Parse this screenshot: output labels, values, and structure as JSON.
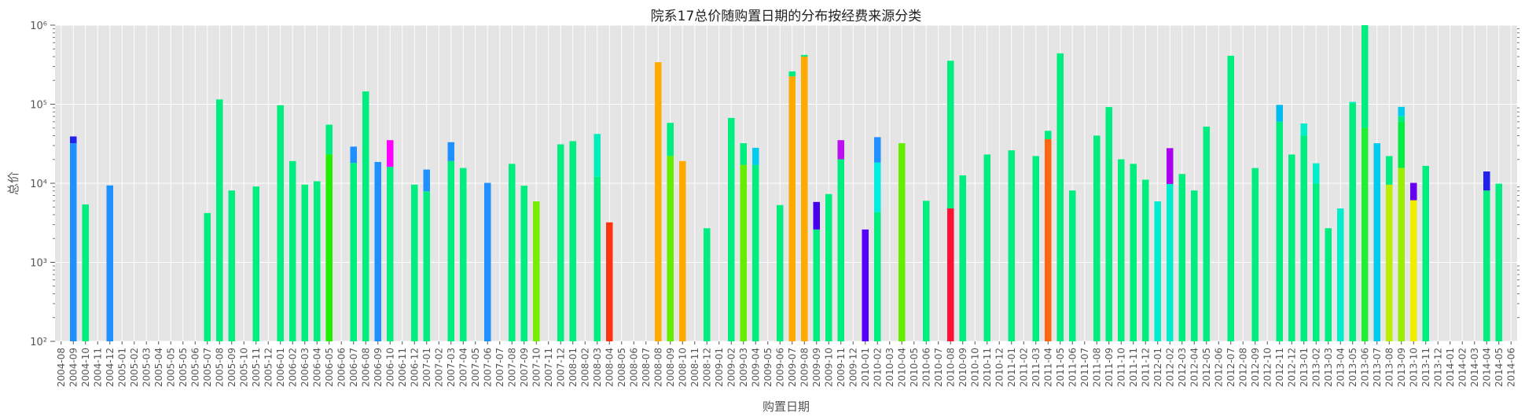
{
  "chart_data": {
    "type": "bar",
    "stacked": true,
    "y_scale": "log",
    "title": "院系17总价随购置日期的分布按经费来源分类",
    "xlabel": "购置日期",
    "ylabel": "总价",
    "ylim": [
      100,
      1000000
    ],
    "y_ticks": [
      {
        "value": 100,
        "label": "10²"
      },
      {
        "value": 1000,
        "label": "10³"
      },
      {
        "value": 10000,
        "label": "10⁴"
      },
      {
        "value": 100000,
        "label": "10⁵"
      },
      {
        "value": 1000000,
        "label": "10⁶"
      }
    ],
    "grid": true,
    "legend": "none",
    "categories": [
      "2004-08",
      "2004-09",
      "2004-10",
      "2004-11",
      "2004-12",
      "2005-01",
      "2005-02",
      "2005-03",
      "2005-04",
      "2005-05",
      "2005-05",
      "2005-06",
      "2005-07",
      "2005-08",
      "2005-09",
      "2005-10",
      "2005-11",
      "2005-12",
      "2006-01",
      "2006-02",
      "2006-03",
      "2006-04",
      "2006-05",
      "2006-06",
      "2006-07",
      "2006-08",
      "2006-09",
      "2006-10",
      "2006-11",
      "2006-12",
      "2007-01",
      "2007-02",
      "2007-03",
      "2007-04",
      "2007-05",
      "2007-06",
      "2007-07",
      "2007-08",
      "2007-09",
      "2007-10",
      "2007-11",
      "2007-12",
      "2008-01",
      "2008-02",
      "2008-03",
      "2008-04",
      "2008-05",
      "2008-06",
      "2008-07",
      "2008-08",
      "2008-09",
      "2008-10",
      "2008-11",
      "2008-12",
      "2009-01",
      "2009-02",
      "2009-03",
      "2009-04",
      "2009-05",
      "2009-06",
      "2009-07",
      "2009-08",
      "2009-09",
      "2009-10",
      "2009-11",
      "2009-12",
      "2010-01",
      "2010-02",
      "2010-03",
      "2010-04",
      "2010-05",
      "2010-06",
      "2010-07",
      "2010-08",
      "2010-09",
      "2010-10",
      "2010-11",
      "2010-12",
      "2011-01",
      "2011-02",
      "2011-03",
      "2011-04",
      "2011-05",
      "2011-06",
      "2011-07",
      "2011-08",
      "2011-09",
      "2011-10",
      "2011-11",
      "2011-12",
      "2012-01",
      "2012-02",
      "2012-03",
      "2012-04",
      "2012-05",
      "2012-06",
      "2012-07",
      "2012-08",
      "2012-09",
      "2012-10",
      "2012-11",
      "2012-12",
      "2013-01",
      "2013-02",
      "2013-03",
      "2013-04",
      "2013-05",
      "2013-06",
      "2013-07",
      "2013-08",
      "2013-09",
      "2013-10",
      "2013-11",
      "2013-12",
      "2014-01",
      "2014-02",
      "2014-03",
      "2014-04",
      "2014-05",
      "2014-06"
    ],
    "bars": [
      {
        "i": 1,
        "segments": [
          {
            "v": 32000,
            "c": "#1e90ff"
          },
          {
            "v": 7000,
            "c": "#2222ee"
          }
        ]
      },
      {
        "i": 2,
        "segments": [
          {
            "v": 5300,
            "c": "#00ee7f"
          }
        ]
      },
      {
        "i": 4,
        "segments": [
          {
            "v": 9300,
            "c": "#1e90ff"
          }
        ]
      },
      {
        "i": 12,
        "segments": [
          {
            "v": 4100,
            "c": "#00ee7f"
          }
        ]
      },
      {
        "i": 13,
        "segments": [
          {
            "v": 115000,
            "c": "#00ee7f"
          }
        ]
      },
      {
        "i": 14,
        "segments": [
          {
            "v": 8000,
            "c": "#00ee7f"
          }
        ]
      },
      {
        "i": 16,
        "segments": [
          {
            "v": 9000,
            "c": "#00ee7f"
          }
        ]
      },
      {
        "i": 18,
        "segments": [
          {
            "v": 97000,
            "c": "#00ee7f"
          }
        ]
      },
      {
        "i": 19,
        "segments": [
          {
            "v": 19000,
            "c": "#00ee7f"
          }
        ]
      },
      {
        "i": 20,
        "segments": [
          {
            "v": 9500,
            "c": "#00ee7f"
          }
        ]
      },
      {
        "i": 21,
        "segments": [
          {
            "v": 10500,
            "c": "#00ee7f"
          }
        ]
      },
      {
        "i": 22,
        "segments": [
          {
            "v": 23000,
            "c": "#22ee00"
          },
          {
            "v": 32000,
            "c": "#00ee7f"
          }
        ]
      },
      {
        "i": 24,
        "segments": [
          {
            "v": 18000,
            "c": "#00ee7f"
          },
          {
            "v": 11000,
            "c": "#1e90ff"
          }
        ]
      },
      {
        "i": 25,
        "segments": [
          {
            "v": 145000,
            "c": "#00ee7f"
          }
        ]
      },
      {
        "i": 26,
        "segments": [
          {
            "v": 18500,
            "c": "#1e90ff"
          }
        ]
      },
      {
        "i": 27,
        "segments": [
          {
            "v": 16000,
            "c": "#00ee7f"
          },
          {
            "v": 19000,
            "c": "#ff00ff"
          }
        ]
      },
      {
        "i": 29,
        "segments": [
          {
            "v": 9500,
            "c": "#00ee7f"
          }
        ]
      },
      {
        "i": 30,
        "segments": [
          {
            "v": 7800,
            "c": "#00ee7f"
          },
          {
            "v": 7000,
            "c": "#1e90ff"
          }
        ]
      },
      {
        "i": 32,
        "segments": [
          {
            "v": 19000,
            "c": "#00ee7f"
          },
          {
            "v": 14000,
            "c": "#1e90ff"
          }
        ]
      },
      {
        "i": 33,
        "segments": [
          {
            "v": 15500,
            "c": "#00ee7f"
          }
        ]
      },
      {
        "i": 35,
        "segments": [
          {
            "v": 10000,
            "c": "#1e90ff"
          }
        ]
      },
      {
        "i": 37,
        "segments": [
          {
            "v": 17500,
            "c": "#00ee7f"
          }
        ]
      },
      {
        "i": 38,
        "segments": [
          {
            "v": 9200,
            "c": "#00ee7f"
          }
        ]
      },
      {
        "i": 39,
        "segments": [
          {
            "v": 5800,
            "c": "#77ee00"
          }
        ]
      },
      {
        "i": 41,
        "segments": [
          {
            "v": 31000,
            "c": "#00ee7f"
          }
        ]
      },
      {
        "i": 42,
        "segments": [
          {
            "v": 34000,
            "c": "#00ee7f"
          }
        ]
      },
      {
        "i": 44,
        "segments": [
          {
            "v": 12000,
            "c": "#00ee7f"
          },
          {
            "v": 30000,
            "c": "#00eebb"
          }
        ]
      },
      {
        "i": 45,
        "segments": [
          {
            "v": 3100,
            "c": "#ff3311"
          }
        ]
      },
      {
        "i": 49,
        "segments": [
          {
            "v": 340000,
            "c": "#ffaa00"
          }
        ]
      },
      {
        "i": 50,
        "segments": [
          {
            "v": 22000,
            "c": "#66ee00"
          },
          {
            "v": 36000,
            "c": "#00ee7f"
          }
        ]
      },
      {
        "i": 51,
        "segments": [
          {
            "v": 19000,
            "c": "#ffaa00"
          }
        ]
      },
      {
        "i": 53,
        "segments": [
          {
            "v": 2600,
            "c": "#00ee7f"
          }
        ]
      },
      {
        "i": 55,
        "segments": [
          {
            "v": 67000,
            "c": "#00ee7f"
          }
        ]
      },
      {
        "i": 56,
        "segments": [
          {
            "v": 17000,
            "c": "#66ee00"
          },
          {
            "v": 15000,
            "c": "#00ee7f"
          }
        ]
      },
      {
        "i": 57,
        "segments": [
          {
            "v": 17000,
            "c": "#00ee7f"
          },
          {
            "v": 11000,
            "c": "#00ccee"
          }
        ]
      },
      {
        "i": 59,
        "segments": [
          {
            "v": 5200,
            "c": "#00ee7f"
          }
        ]
      },
      {
        "i": 60,
        "segments": [
          {
            "v": 225000,
            "c": "#ffaa00"
          },
          {
            "v": 35000,
            "c": "#00ee7f"
          }
        ]
      },
      {
        "i": 61,
        "segments": [
          {
            "v": 400000,
            "c": "#ffaa00"
          },
          {
            "v": 20000,
            "c": "#00ee7f"
          }
        ]
      },
      {
        "i": 62,
        "segments": [
          {
            "v": 2500,
            "c": "#00ee7f"
          },
          {
            "v": 3200,
            "c": "#4400ee"
          }
        ]
      },
      {
        "i": 63,
        "segments": [
          {
            "v": 7200,
            "c": "#00ee7f"
          }
        ]
      },
      {
        "i": 64,
        "segments": [
          {
            "v": 20000,
            "c": "#00ee7f"
          },
          {
            "v": 15000,
            "c": "#bb11ee"
          }
        ]
      },
      {
        "i": 66,
        "segments": [
          {
            "v": 2500,
            "c": "#5500ff"
          }
        ]
      },
      {
        "i": 67,
        "segments": [
          {
            "v": 4200,
            "c": "#00ee7f"
          },
          {
            "v": 14000,
            "c": "#00eedd"
          },
          {
            "v": 20000,
            "c": "#1e90ff"
          }
        ]
      },
      {
        "i": 69,
        "segments": [
          {
            "v": 32000,
            "c": "#66ee00"
          }
        ]
      },
      {
        "i": 71,
        "segments": [
          {
            "v": 5900,
            "c": "#00ee7f"
          }
        ]
      },
      {
        "i": 73,
        "segments": [
          {
            "v": 4700,
            "c": "#ff1133"
          },
          {
            "v": 350000,
            "c": "#00ee7f"
          }
        ]
      },
      {
        "i": 74,
        "segments": [
          {
            "v": 12500,
            "c": "#00ee7f"
          }
        ]
      },
      {
        "i": 76,
        "segments": [
          {
            "v": 23000,
            "c": "#00ee7f"
          }
        ]
      },
      {
        "i": 78,
        "segments": [
          {
            "v": 26000,
            "c": "#00ee7f"
          }
        ]
      },
      {
        "i": 80,
        "segments": [
          {
            "v": 22000,
            "c": "#00ee7f"
          }
        ]
      },
      {
        "i": 81,
        "segments": [
          {
            "v": 36000,
            "c": "#ff6611"
          },
          {
            "v": 10000,
            "c": "#00ee7f"
          }
        ]
      },
      {
        "i": 82,
        "segments": [
          {
            "v": 440000,
            "c": "#00ee7f"
          }
        ]
      },
      {
        "i": 83,
        "segments": [
          {
            "v": 8000,
            "c": "#00ee7f"
          }
        ]
      },
      {
        "i": 85,
        "segments": [
          {
            "v": 40000,
            "c": "#00ee7f"
          }
        ]
      },
      {
        "i": 86,
        "segments": [
          {
            "v": 92000,
            "c": "#00ee7f"
          }
        ]
      },
      {
        "i": 87,
        "segments": [
          {
            "v": 20000,
            "c": "#00ee7f"
          }
        ]
      },
      {
        "i": 88,
        "segments": [
          {
            "v": 17500,
            "c": "#00ee7f"
          }
        ]
      },
      {
        "i": 89,
        "segments": [
          {
            "v": 11000,
            "c": "#00ee7f"
          }
        ]
      },
      {
        "i": 90,
        "segments": [
          {
            "v": 5800,
            "c": "#00eecc"
          }
        ]
      },
      {
        "i": 91,
        "segments": [
          {
            "v": 9700,
            "c": "#00eecc"
          },
          {
            "v": 18000,
            "c": "#aa00ee"
          }
        ]
      },
      {
        "i": 92,
        "segments": [
          {
            "v": 13000,
            "c": "#00ee7f"
          }
        ]
      },
      {
        "i": 93,
        "segments": [
          {
            "v": 8000,
            "c": "#00ee7f"
          }
        ]
      },
      {
        "i": 94,
        "segments": [
          {
            "v": 52000,
            "c": "#00ee7f"
          }
        ]
      },
      {
        "i": 96,
        "segments": [
          {
            "v": 410000,
            "c": "#00ee7f"
          }
        ]
      },
      {
        "i": 98,
        "segments": [
          {
            "v": 15500,
            "c": "#00ee7f"
          }
        ]
      },
      {
        "i": 100,
        "segments": [
          {
            "v": 60000,
            "c": "#00ee7f"
          },
          {
            "v": 38000,
            "c": "#00bbee"
          }
        ]
      },
      {
        "i": 101,
        "segments": [
          {
            "v": 23000,
            "c": "#00ee7f"
          }
        ]
      },
      {
        "i": 102,
        "segments": [
          {
            "v": 40000,
            "c": "#00ee7f"
          },
          {
            "v": 17000,
            "c": "#00eecc"
          }
        ]
      },
      {
        "i": 103,
        "segments": [
          {
            "v": 9800,
            "c": "#00ee7f"
          },
          {
            "v": 8000,
            "c": "#00eecc"
          }
        ]
      },
      {
        "i": 104,
        "segments": [
          {
            "v": 2600,
            "c": "#00ee7f"
          }
        ]
      },
      {
        "i": 105,
        "segments": [
          {
            "v": 4700,
            "c": "#00eecc"
          }
        ]
      },
      {
        "i": 106,
        "segments": [
          {
            "v": 103000,
            "c": "#00ee7f"
          },
          {
            "v": 4000,
            "c": "#00eecc"
          }
        ]
      },
      {
        "i": 107,
        "segments": [
          {
            "v": 50000,
            "c": "#22ee33"
          },
          {
            "v": 950000,
            "c": "#00ee7f"
          }
        ]
      },
      {
        "i": 108,
        "segments": [
          {
            "v": 32000,
            "c": "#00ccee"
          }
        ]
      },
      {
        "i": 109,
        "segments": [
          {
            "v": 9500,
            "c": "#bbee00"
          },
          {
            "v": 12500,
            "c": "#00ee7f"
          }
        ]
      },
      {
        "i": 110,
        "segments": [
          {
            "v": 15500,
            "c": "#99ee00"
          },
          {
            "v": 45000,
            "c": "#00ee44"
          },
          {
            "v": 10000,
            "c": "#00ee7f"
          },
          {
            "v": 22000,
            "c": "#00ccee"
          }
        ]
      },
      {
        "i": 111,
        "segments": [
          {
            "v": 6000,
            "c": "#eeee00"
          },
          {
            "v": 4000,
            "c": "#6600ee"
          }
        ]
      },
      {
        "i": 112,
        "segments": [
          {
            "v": 16500,
            "c": "#00ee7f"
          }
        ]
      },
      {
        "i": 117,
        "segments": [
          {
            "v": 8000,
            "c": "#00ee7f"
          },
          {
            "v": 6000,
            "c": "#2222ee"
          }
        ]
      },
      {
        "i": 118,
        "segments": [
          {
            "v": 9800,
            "c": "#00ee7f"
          }
        ]
      }
    ]
  }
}
